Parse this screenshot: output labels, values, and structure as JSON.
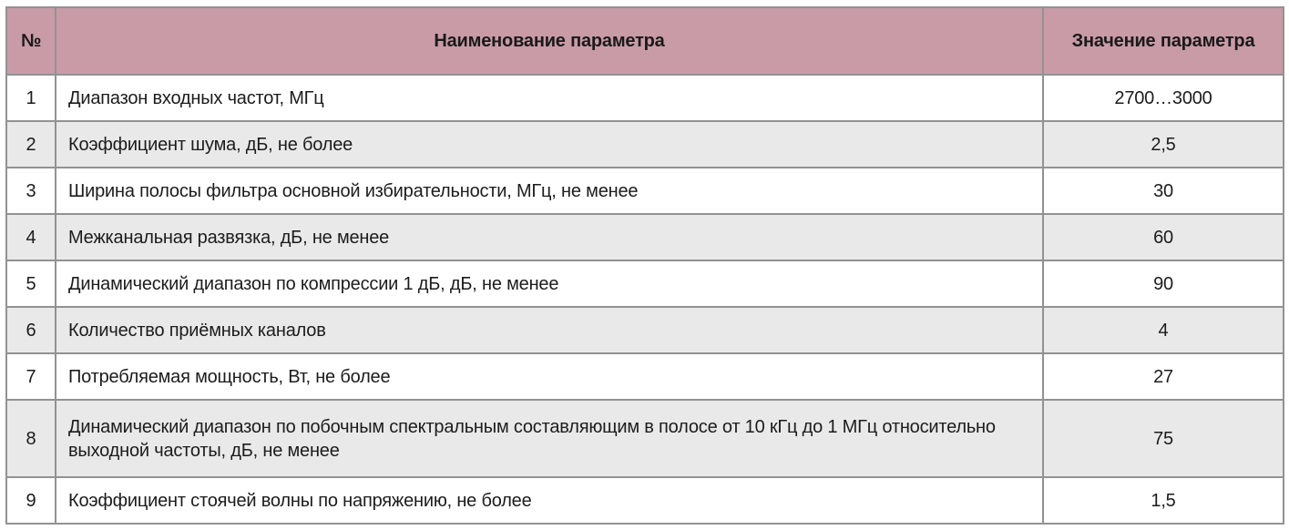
{
  "table": {
    "columns": {
      "num_label": "№",
      "name_label": "Наименование параметра",
      "value_label": "Значение параметра"
    },
    "rows": [
      {
        "num": "1",
        "name": "Диапазон входных частот, МГц",
        "value": "2700…3000"
      },
      {
        "num": "2",
        "name": "Коэффициент шума, дБ, не более",
        "value": "2,5"
      },
      {
        "num": "3",
        "name": "Ширина полосы фильтра основной избирательности, МГц, не менее",
        "value": "30"
      },
      {
        "num": "4",
        "name": "Межканальная развязка, дБ, не менее",
        "value": "60"
      },
      {
        "num": "5",
        "name": "Динамический диапазон по компрессии 1 дБ, дБ, не менее",
        "value": "90"
      },
      {
        "num": "6",
        "name": "Количество приёмных каналов",
        "value": "4"
      },
      {
        "num": "7",
        "name": "Потребляемая мощность, Вт, не более",
        "value": "27"
      },
      {
        "num": "8",
        "name": "Динамический диапазон по побочным спектральным составляющим в полосе от 10 кГц до 1 МГц относительно выходной частоты, дБ, не менее",
        "value": "75"
      },
      {
        "num": "9",
        "name": "Коэффициент стоячей волны по напряжению, не более",
        "value": "1,5"
      }
    ],
    "colors": {
      "header_bg": "#c99ba7",
      "row_bg": "#ffffff",
      "row_alt_bg": "#e9e9e9",
      "border": "#929292",
      "text": "#1c1c1c"
    }
  }
}
